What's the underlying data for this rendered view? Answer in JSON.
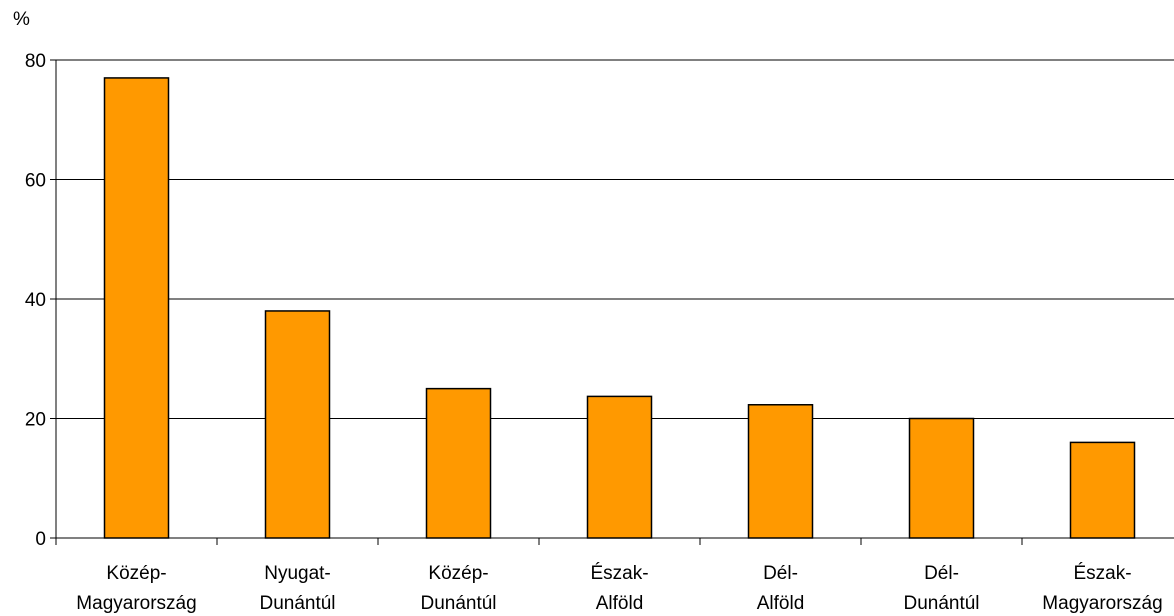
{
  "chart_data": {
    "type": "bar",
    "unit_label": "%",
    "categories": [
      [
        "Közép-",
        "Magyarország"
      ],
      [
        "Nyugat-",
        "Dunántúl"
      ],
      [
        "Közép-",
        "Dunántúl"
      ],
      [
        "Észak-",
        "Alföld"
      ],
      [
        "Dél-",
        "Alföld"
      ],
      [
        "Dél-",
        "Dunántúl"
      ],
      [
        "Észak-",
        "Magyarország"
      ]
    ],
    "values": [
      77,
      38,
      25,
      23.7,
      22.3,
      20,
      16
    ],
    "ylim": [
      0,
      80
    ],
    "yticks": [
      0,
      20,
      40,
      60,
      80
    ],
    "grid": true,
    "colors": {
      "bar": "#ff9900",
      "bar_stroke": "#000000",
      "grid": "#000000"
    }
  }
}
